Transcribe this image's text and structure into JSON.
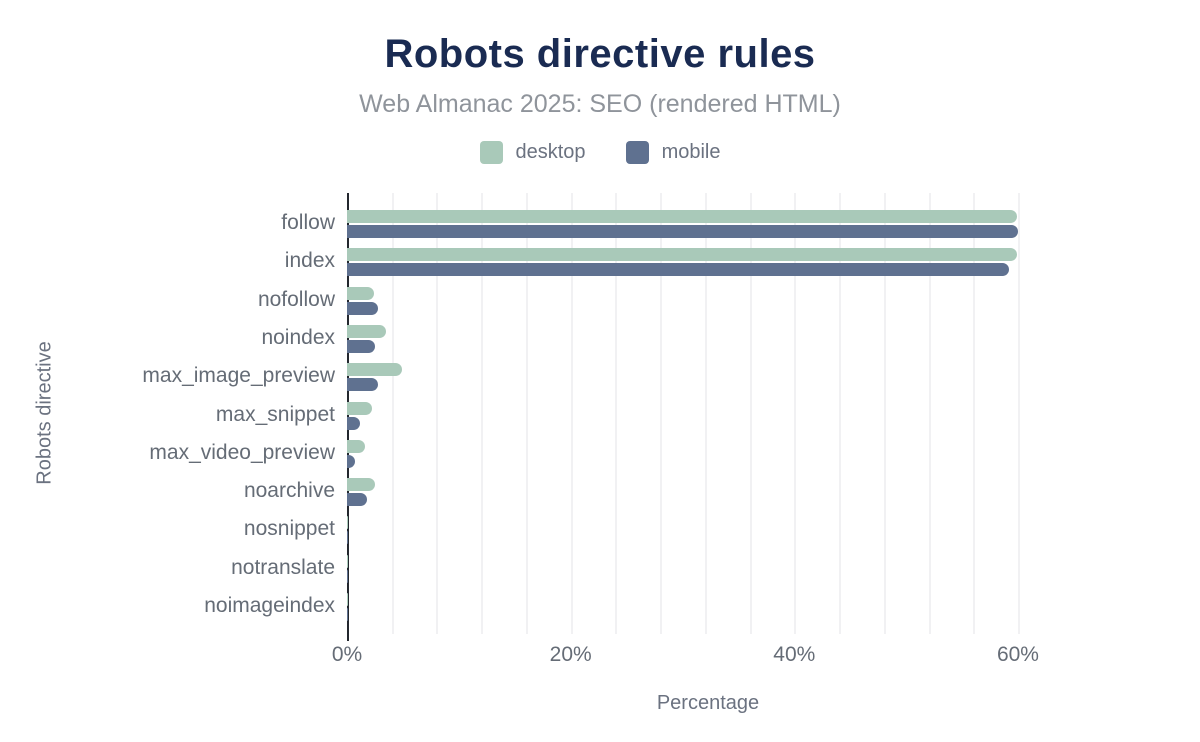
{
  "chart_data": {
    "type": "bar",
    "orientation": "horizontal",
    "title": "Robots directive rules",
    "subtitle": "Web Almanac 2025: SEO (rendered HTML)",
    "xlabel": "Percentage",
    "ylabel": "Robots directive",
    "categories": [
      "follow",
      "index",
      "nofollow",
      "noindex",
      "max_image_preview",
      "max_snippet",
      "max_video_preview",
      "noarchive",
      "nosnippet",
      "notranslate",
      "noimageindex"
    ],
    "series": [
      {
        "name": "desktop",
        "color": "#a9c9b9",
        "values": [
          59.9,
          59.9,
          2.4,
          3.5,
          4.9,
          2.2,
          1.6,
          2.5,
          0.1,
          0.1,
          0.1
        ]
      },
      {
        "name": "mobile",
        "color": "#5f7190",
        "values": [
          60.0,
          59.2,
          2.8,
          2.5,
          2.8,
          1.2,
          0.7,
          1.8,
          0.1,
          0.1,
          0.1
        ]
      }
    ],
    "xlim": [
      0,
      64
    ],
    "xticks": [
      {
        "value": 0,
        "label": "0%"
      },
      {
        "value": 20,
        "label": "20%"
      },
      {
        "value": 40,
        "label": "40%"
      },
      {
        "value": 60,
        "label": "60%"
      }
    ],
    "gridline_step_pct": 4,
    "grid": true,
    "legend_position": "top"
  },
  "colors": {
    "title": "#1a2b52",
    "subtitle": "#8f949b",
    "axis_line": "#23272e",
    "gridline": "#f1f1f3",
    "label_text": "#656c76",
    "desktop": "#a9c9b9",
    "mobile": "#5f7190"
  }
}
